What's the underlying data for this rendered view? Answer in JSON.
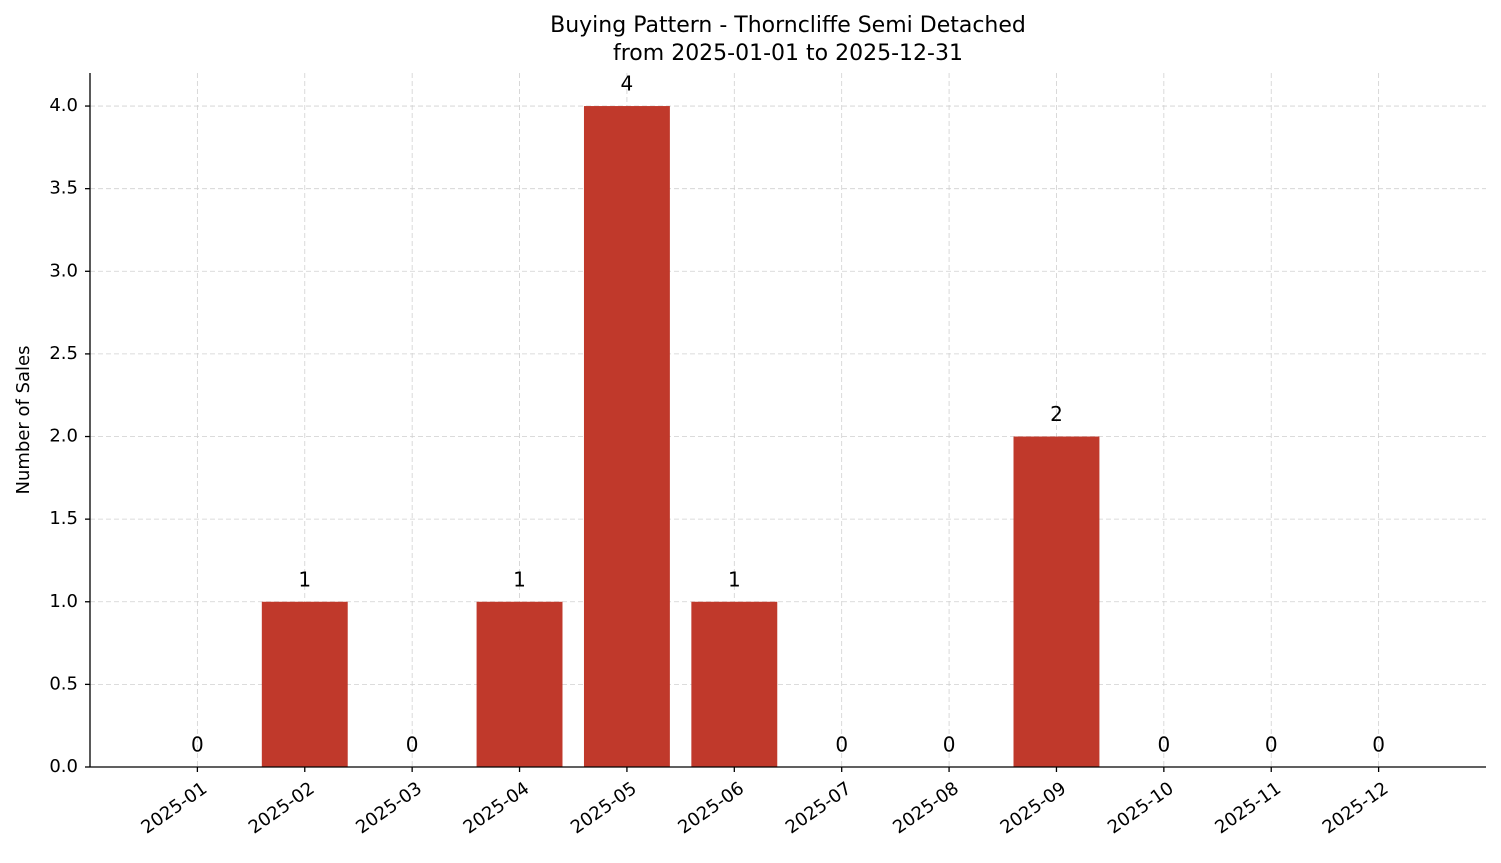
{
  "chart_data": {
    "type": "bar",
    "title": "Buying Pattern - Thorncliffe Semi Detached",
    "subtitle": "from 2025-01-01 to 2025-12-31",
    "y_label": "Number of Sales",
    "categories": [
      "2025-01",
      "2025-02",
      "2025-03",
      "2025-04",
      "2025-05",
      "2025-06",
      "2025-07",
      "2025-08",
      "2025-09",
      "2025-10",
      "2025-11",
      "2025-12"
    ],
    "values": [
      0,
      1,
      0,
      1,
      4,
      1,
      0,
      0,
      2,
      0,
      0,
      0
    ],
    "color": "#c0392b",
    "ylim": [
      0,
      4.2
    ],
    "yticks": [
      {
        "value": 0,
        "label": "0.0"
      },
      0.5,
      {
        "value": 1,
        "label": "1.0"
      },
      1.5,
      {
        "value": 2,
        "label": "2.0"
      },
      2.5,
      {
        "value": 3,
        "label": "3.0"
      },
      3.5,
      {
        "value": 4,
        "label": "4.0"
      }
    ],
    "grid": true
  }
}
